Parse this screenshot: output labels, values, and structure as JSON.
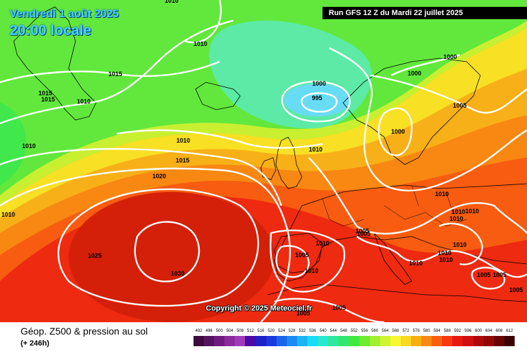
{
  "header": {
    "date": "Vendredi 1 août 2025",
    "time": "20:00 locale",
    "run": "Run GFS 12 Z du Mardi 22 juillet 2025"
  },
  "copyright": "Copyright © 2025 Meteociel.fr",
  "footer": {
    "title": "Géop. Z500 & pression au sol",
    "lead": "(+ 246h)"
  },
  "legend": {
    "values": [
      "492",
      "496",
      "500",
      "504",
      "508",
      "512",
      "516",
      "520",
      "524",
      "528",
      "532",
      "536",
      "540",
      "544",
      "548",
      "552",
      "556",
      "560",
      "564",
      "568",
      "572",
      "576",
      "580",
      "584",
      "588",
      "592",
      "596",
      "600",
      "604",
      "608",
      "612"
    ],
    "colors": [
      "#3b0a3e",
      "#55125e",
      "#6f1a7e",
      "#8a2a9e",
      "#a13ab8",
      "#4a0aa8",
      "#2020c8",
      "#1a3ae0",
      "#1a64ea",
      "#1a8cf0",
      "#1ab4f4",
      "#1adcf8",
      "#2ae8d0",
      "#2ee8a0",
      "#30e870",
      "#40e840",
      "#70ec30",
      "#a0f030",
      "#d0f430",
      "#f8f830",
      "#f8d820",
      "#f8b010",
      "#f88810",
      "#f86010",
      "#f83810",
      "#e81a10",
      "#d01010",
      "#b00808",
      "#900808",
      "#6a0404",
      "#3a0202"
    ],
    "map_colors": {
      "deep_red": "#d42008",
      "red": "#ee2a10",
      "orange_red": "#f85c10",
      "orange": "#f88812",
      "amber": "#f8b018",
      "yellow": "#f8e024",
      "lime": "#c8f030",
      "green_light": "#9aec30",
      "green": "#62e83c",
      "green_deep": "#40e84c",
      "turquoise": "#5ceaa6",
      "cyan": "#68dcf4"
    }
  },
  "isobars": {
    "labels": [
      "1010",
      "1010",
      "1015",
      "1015",
      "1015",
      "1010",
      "1010",
      "1000",
      "995",
      "1000",
      "1000",
      "1005",
      "1000",
      "1010",
      "1010",
      "1015",
      "1020",
      "1025",
      "1030",
      "1010",
      "1010",
      "1005",
      "1005",
      "1010",
      "1005",
      "1010",
      "1010",
      "1010",
      "1010",
      "1010",
      "1010",
      "1010",
      "1005",
      "1005",
      "1005",
      "1005",
      "1005",
      "1010"
    ]
  }
}
